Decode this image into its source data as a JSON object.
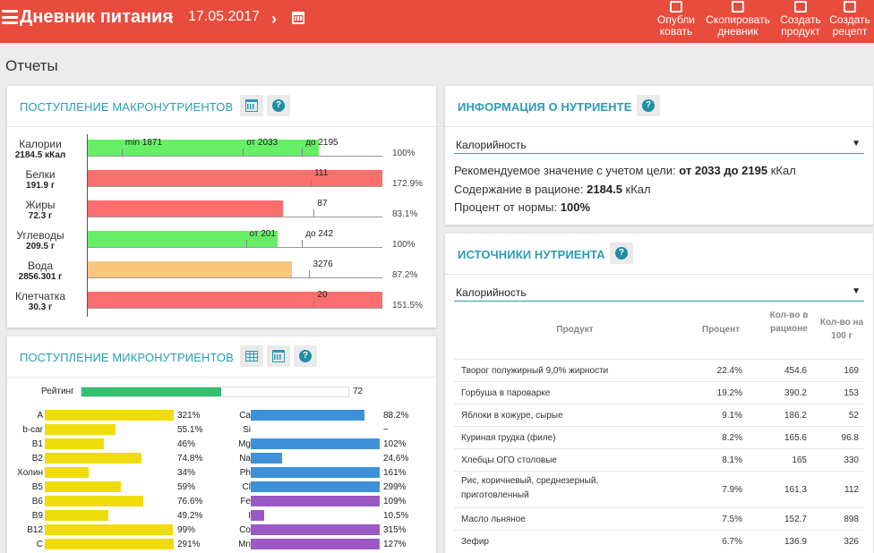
{
  "header": {
    "title": "Дневник питания",
    "date": "17.05.2017",
    "actions": [
      {
        "line1": "Опубли",
        "line2": "ковать",
        "icon": "megaphone-icon"
      },
      {
        "line1": "Скопировать",
        "line2": "дневник",
        "icon": "copy-icon"
      },
      {
        "line1": "Создать",
        "line2": "продукт",
        "icon": "new-document-icon"
      },
      {
        "line1": "Создать",
        "line2": "рецепт",
        "icon": "chef-icon"
      }
    ]
  },
  "page_title": "Отчеты",
  "macro": {
    "title": "ПОСТУПЛЕНИЕ МАКРОНУТРИЕНТОВ",
    "rows": [
      {
        "name": "Калории",
        "value": "2184.5 кКал",
        "percent": "100%",
        "fill": 0.785,
        "color": "#66ee66",
        "labels": [
          {
            "text": "min 1871",
            "at": 0.13
          },
          {
            "text": "от 2033",
            "at": 0.54
          },
          {
            "text": "до 2195",
            "at": 0.74
          }
        ]
      },
      {
        "name": "Белки",
        "value": "191.9 г",
        "percent": "172.9%",
        "fill": 1.0,
        "color": "#fa6e6e",
        "labels": [
          {
            "text": "111",
            "at": 0.77
          }
        ]
      },
      {
        "name": "Жиры",
        "value": "72.3 г",
        "percent": "83.1%",
        "fill": 0.665,
        "color": "#fa6e6e",
        "labels": [
          {
            "text": "87",
            "at": 0.78
          }
        ]
      },
      {
        "name": "Углеводы",
        "value": "209.5 г",
        "percent": "100%",
        "fill": 0.645,
        "color": "#66ee66",
        "labels": [
          {
            "text": "от 201",
            "at": 0.55
          },
          {
            "text": "до 242",
            "at": 0.74
          }
        ]
      },
      {
        "name": "Вода",
        "value": "2856.301 г",
        "percent": "87.2%",
        "fill": 0.695,
        "color": "#f8c77c",
        "labels": [
          {
            "text": "3276",
            "at": 0.765
          }
        ]
      },
      {
        "name": "Клетчатка",
        "value": "30.3 г",
        "percent": "151.5%",
        "fill": 1.0,
        "color": "#fa6e6e",
        "labels": [
          {
            "text": "20",
            "at": 0.78
          }
        ]
      }
    ]
  },
  "micro": {
    "title": "ПОСТУПЛЕНИЕ МИКРОНУТРИЕНТОВ",
    "rating_label": "Рейтинг",
    "rating_value": "72",
    "rating_fill": 0.72,
    "left": [
      {
        "name": "A",
        "percent": "321%",
        "fill": 1.0
      },
      {
        "name": "b-car",
        "percent": "55.1%",
        "fill": 0.55
      },
      {
        "name": "B1",
        "percent": "46%",
        "fill": 0.46
      },
      {
        "name": "B2",
        "percent": "74.8%",
        "fill": 0.748
      },
      {
        "name": "Холин",
        "percent": "34%",
        "fill": 0.34
      },
      {
        "name": "B5",
        "percent": "59%",
        "fill": 0.59
      },
      {
        "name": "B6",
        "percent": "76.6%",
        "fill": 0.766
      },
      {
        "name": "B9",
        "percent": "49.2%",
        "fill": 0.492
      },
      {
        "name": "B12",
        "percent": "99%",
        "fill": 0.99
      },
      {
        "name": "C",
        "percent": "291%",
        "fill": 1.0
      }
    ],
    "right": [
      {
        "name": "Ca",
        "percent": "88.2%",
        "fill": 0.882,
        "color": "#3c91d8"
      },
      {
        "name": "Si",
        "percent": "~",
        "fill": 0,
        "color": "#3c91d8"
      },
      {
        "name": "Mg",
        "percent": "102%",
        "fill": 1.0,
        "color": "#3c91d8"
      },
      {
        "name": "Na",
        "percent": "24.6%",
        "fill": 0.246,
        "color": "#3c91d8"
      },
      {
        "name": "Ph",
        "percent": "161%",
        "fill": 1.0,
        "color": "#3c91d8"
      },
      {
        "name": "Cl",
        "percent": "299%",
        "fill": 1.0,
        "color": "#3c91d8"
      },
      {
        "name": "Fe",
        "percent": "109%",
        "fill": 1.0,
        "color": "#9b59c6"
      },
      {
        "name": "I",
        "percent": "10.5%",
        "fill": 0.105,
        "color": "#9b59c6"
      },
      {
        "name": "Co",
        "percent": "315%",
        "fill": 1.0,
        "color": "#9b59c6"
      },
      {
        "name": "Mn",
        "percent": "127%",
        "fill": 1.0,
        "color": "#9b59c6"
      }
    ]
  },
  "info": {
    "title": "ИНФОРМАЦИЯ О НУТРИЕНТЕ",
    "select": "Калорийность",
    "rec_label": "Рекомендуемое значение с учетом цели:",
    "rec_value": "от 2033 до 2195",
    "rec_unit": "кКал",
    "content_label": "Содержание в рационе:",
    "content_value": "2184.5",
    "content_unit": "кКал",
    "pct_label": "Процент от нормы:",
    "pct_value": "100%"
  },
  "sources": {
    "title": "ИСТОЧНИКИ НУТРИЕНТА",
    "select": "Калорийность",
    "columns": [
      "Продукт",
      "Процент",
      "Кол-во в рационе",
      "Кол-во на 100 г"
    ],
    "rows": [
      {
        "product": "Творог полужирный 9,0% жирности",
        "percent": "22.4%",
        "amount": "454.6",
        "per100": "169"
      },
      {
        "product": "Горбуша в пароварке",
        "percent": "19.2%",
        "amount": "390.2",
        "per100": "153"
      },
      {
        "product": "Яблоки в кожуре, сырые",
        "percent": "9.1%",
        "amount": "186.2",
        "per100": "52"
      },
      {
        "product": "Куриная грудка (филе)",
        "percent": "8.2%",
        "amount": "165.6",
        "per100": "96.8"
      },
      {
        "product": "Хлебцы ОГО столовые",
        "percent": "8.1%",
        "amount": "165",
        "per100": "330"
      },
      {
        "product": "Рис, коричневый, среднезерный, приготовленный",
        "percent": "7.9%",
        "amount": "161.3",
        "per100": "112"
      },
      {
        "product": "Масло льняное",
        "percent": "7.5%",
        "amount": "152.7",
        "per100": "898"
      },
      {
        "product": "Зефир",
        "percent": "6.7%",
        "amount": "136.9",
        "per100": "326"
      }
    ]
  },
  "colors": {
    "accent": "#e84c3d",
    "title": "#2a9cb5",
    "vitamin": "#f0dc0a"
  }
}
